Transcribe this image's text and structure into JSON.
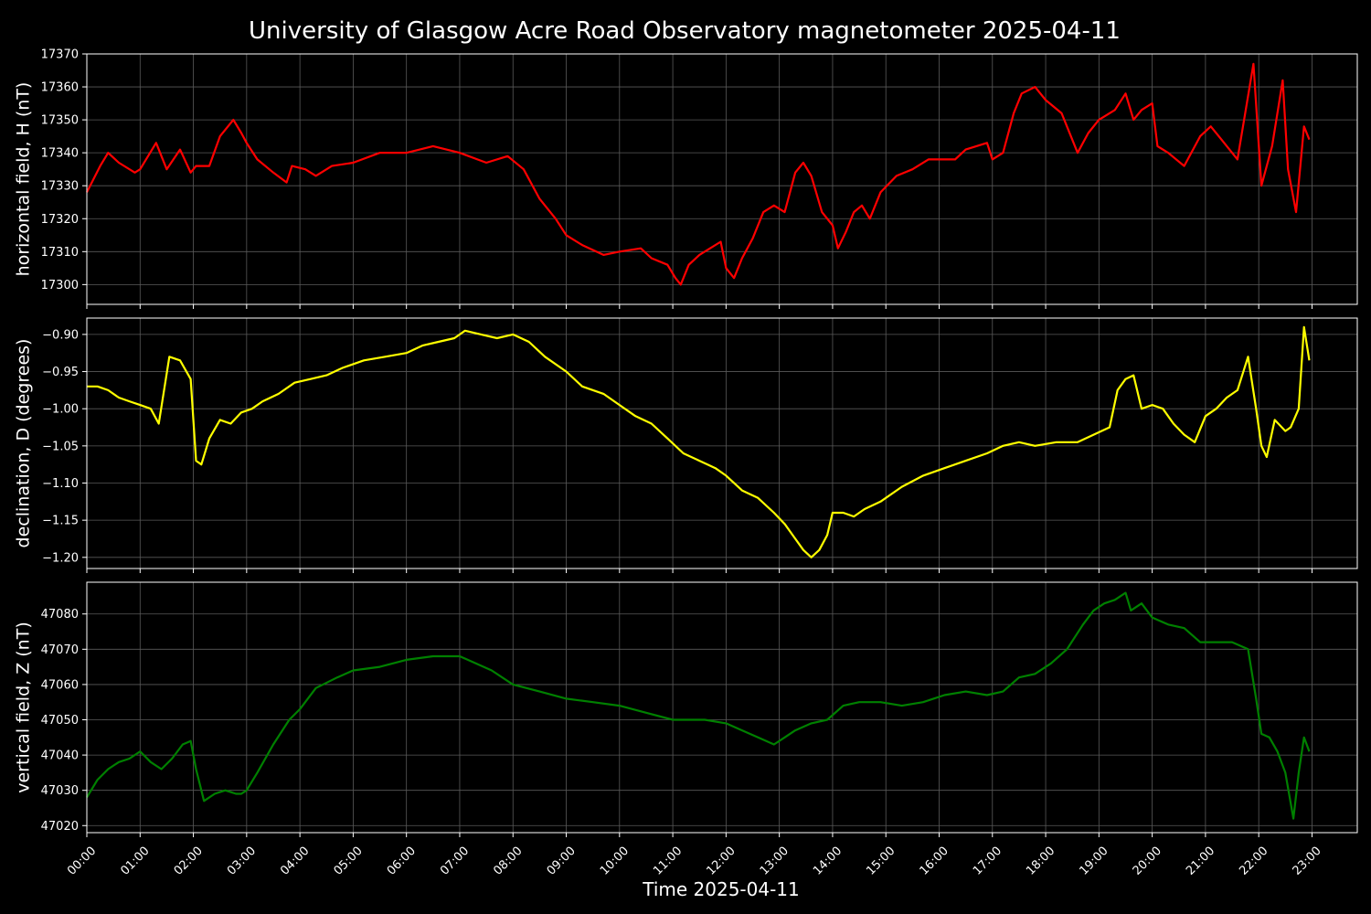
{
  "title": "University of Glasgow Acre Road Observatory magnetometer 2025-04-11",
  "xlabel": "Time 2025-04-11",
  "chart_data": [
    {
      "type": "line",
      "name": "horizontal",
      "ylabel": "horizontal field, H (nT)",
      "color": "#ff0000",
      "xlim": [
        0,
        23.85
      ],
      "ylim": [
        17294,
        17370
      ],
      "yticks": [
        17300,
        17310,
        17320,
        17330,
        17340,
        17350,
        17360,
        17370
      ],
      "x": [
        0,
        0.25,
        0.4,
        0.6,
        0.9,
        1,
        1.3,
        1.5,
        1.75,
        1.95,
        2.05,
        2.3,
        2.5,
        2.75,
        2.9,
        3,
        3.2,
        3.5,
        3.75,
        3.85,
        4.1,
        4.3,
        4.6,
        5,
        5.5,
        6,
        6.5,
        7,
        7.5,
        7.9,
        8.2,
        8.5,
        8.8,
        9,
        9.3,
        9.7,
        10,
        10.4,
        10.6,
        10.9,
        11.05,
        11.15,
        11.3,
        11.5,
        11.7,
        11.9,
        12,
        12.15,
        12.3,
        12.5,
        12.7,
        12.9,
        13.1,
        13.3,
        13.45,
        13.6,
        13.8,
        14,
        14.1,
        14.25,
        14.4,
        14.55,
        14.7,
        14.9,
        15.2,
        15.5,
        15.8,
        16,
        16.3,
        16.5,
        16.7,
        16.9,
        17,
        17.2,
        17.4,
        17.55,
        17.8,
        18,
        18.3,
        18.6,
        18.8,
        19,
        19.3,
        19.5,
        19.65,
        19.8,
        20,
        20.1,
        20.3,
        20.6,
        20.9,
        21.1,
        21.3,
        21.6,
        21.9,
        22.05,
        22.25,
        22.45,
        22.55,
        22.7,
        22.85,
        22.95
      ],
      "values": [
        17328,
        17336,
        17340,
        17337,
        17334,
        17335,
        17343,
        17335,
        17341,
        17334,
        17336,
        17336,
        17345,
        17350,
        17346,
        17343,
        17338,
        17334,
        17331,
        17336,
        17335,
        17333,
        17336,
        17337,
        17340,
        17340,
        17342,
        17340,
        17337,
        17339,
        17335,
        17326,
        17320,
        17315,
        17312,
        17309,
        17310,
        17311,
        17308,
        17306,
        17302,
        17300,
        17306,
        17309,
        17311,
        17313,
        17305,
        17302,
        17308,
        17314,
        17322,
        17324,
        17322,
        17334,
        17337,
        17333,
        17322,
        17318,
        17311,
        17316,
        17322,
        17324,
        17320,
        17328,
        17333,
        17335,
        17338,
        17338,
        17338,
        17341,
        17342,
        17343,
        17338,
        17340,
        17352,
        17358,
        17360,
        17356,
        17352,
        17340,
        17346,
        17350,
        17353,
        17358,
        17350,
        17353,
        17355,
        17342,
        17340,
        17336,
        17345,
        17348,
        17344,
        17338,
        17367,
        17330,
        17342,
        17362,
        17335,
        17322,
        17348,
        17344
      ]
    },
    {
      "type": "line",
      "name": "declination",
      "ylabel": "declination, D (degrees)",
      "color": "#ffff00",
      "xlim": [
        0,
        23.85
      ],
      "ylim": [
        -1.215,
        -0.878
      ],
      "yticks": [
        -1.2,
        -1.15,
        -1.1,
        -1.05,
        -1.0,
        -0.95,
        -0.9
      ],
      "x": [
        0,
        0.2,
        0.4,
        0.6,
        0.8,
        1,
        1.2,
        1.35,
        1.55,
        1.75,
        1.95,
        2.05,
        2.15,
        2.3,
        2.5,
        2.7,
        2.9,
        3.1,
        3.3,
        3.6,
        3.9,
        4.2,
        4.5,
        4.8,
        5.2,
        5.6,
        6,
        6.3,
        6.6,
        6.9,
        7.1,
        7.4,
        7.7,
        8,
        8.3,
        8.6,
        9,
        9.3,
        9.7,
        10,
        10.3,
        10.6,
        10.9,
        11.2,
        11.5,
        11.8,
        12,
        12.3,
        12.6,
        12.9,
        13.1,
        13.25,
        13.45,
        13.6,
        13.75,
        13.9,
        14,
        14.2,
        14.4,
        14.6,
        14.9,
        15.3,
        15.7,
        16.1,
        16.5,
        16.9,
        17.2,
        17.5,
        17.8,
        18.2,
        18.6,
        18.9,
        19.2,
        19.35,
        19.5,
        19.65,
        19.8,
        20,
        20.2,
        20.4,
        20.6,
        20.8,
        21,
        21.2,
        21.4,
        21.6,
        21.8,
        21.95,
        22.05,
        22.15,
        22.3,
        22.5,
        22.6,
        22.75,
        22.85,
        22.95
      ],
      "values": [
        -0.97,
        -0.97,
        -0.975,
        -0.985,
        -0.99,
        -0.995,
        -1.0,
        -1.02,
        -0.93,
        -0.935,
        -0.96,
        -1.07,
        -1.075,
        -1.04,
        -1.015,
        -1.02,
        -1.005,
        -1.0,
        -0.99,
        -0.98,
        -0.965,
        -0.96,
        -0.955,
        -0.945,
        -0.935,
        -0.93,
        -0.925,
        -0.915,
        -0.91,
        -0.905,
        -0.895,
        -0.9,
        -0.905,
        -0.9,
        -0.91,
        -0.93,
        -0.95,
        -0.97,
        -0.98,
        -0.995,
        -1.01,
        -1.02,
        -1.04,
        -1.06,
        -1.07,
        -1.08,
        -1.09,
        -1.11,
        -1.12,
        -1.14,
        -1.155,
        -1.17,
        -1.19,
        -1.2,
        -1.19,
        -1.17,
        -1.14,
        -1.14,
        -1.145,
        -1.135,
        -1.125,
        -1.105,
        -1.09,
        -1.08,
        -1.07,
        -1.06,
        -1.05,
        -1.045,
        -1.05,
        -1.045,
        -1.045,
        -1.035,
        -1.025,
        -0.975,
        -0.96,
        -0.955,
        -1.0,
        -0.995,
        -1.0,
        -1.02,
        -1.035,
        -1.045,
        -1.01,
        -1.0,
        -0.985,
        -0.975,
        -0.93,
        -1.0,
        -1.05,
        -1.065,
        -1.015,
        -1.03,
        -1.025,
        -1.0,
        -0.89,
        -0.935
      ]
    },
    {
      "type": "line",
      "name": "vertical",
      "ylabel": "vertical field, Z (nT)",
      "color": "#008000",
      "xlim": [
        0,
        23.85
      ],
      "ylim": [
        47018,
        47089
      ],
      "yticks": [
        47020,
        47030,
        47040,
        47050,
        47060,
        47070,
        47080
      ],
      "x": [
        0,
        0.2,
        0.4,
        0.6,
        0.8,
        1,
        1.2,
        1.4,
        1.6,
        1.8,
        1.95,
        2.05,
        2.2,
        2.4,
        2.6,
        2.8,
        2.9,
        3,
        3.2,
        3.5,
        3.8,
        4,
        4.3,
        4.7,
        5,
        5.5,
        6,
        6.5,
        7,
        7.3,
        7.6,
        8,
        8.5,
        9,
        9.5,
        10,
        10.5,
        11,
        11.3,
        11.6,
        12,
        12.3,
        12.6,
        12.9,
        13.1,
        13.3,
        13.6,
        13.9,
        14.2,
        14.5,
        14.9,
        15.3,
        15.7,
        16.1,
        16.5,
        16.9,
        17.2,
        17.5,
        17.8,
        18.1,
        18.4,
        18.7,
        18.9,
        19.1,
        19.3,
        19.5,
        19.6,
        19.8,
        20,
        20.3,
        20.6,
        20.9,
        21.2,
        21.5,
        21.8,
        21.95,
        22.05,
        22.2,
        22.35,
        22.5,
        22.65,
        22.75,
        22.85,
        22.95
      ],
      "values": [
        47028,
        47033,
        47036,
        47038,
        47039,
        47041,
        47038,
        47036,
        47039,
        47043,
        47044,
        47036,
        47027,
        47029,
        47030,
        47029,
        47029,
        47030,
        47035,
        47043,
        47050,
        47053,
        47059,
        47062,
        47064,
        47065,
        47067,
        47068,
        47068,
        47066,
        47064,
        47060,
        47058,
        47056,
        47055,
        47054,
        47052,
        47050,
        47050,
        47050,
        47049,
        47047,
        47045,
        47043,
        47045,
        47047,
        47049,
        47050,
        47054,
        47055,
        47055,
        47054,
        47055,
        47057,
        47058,
        47057,
        47058,
        47062,
        47063,
        47066,
        47070,
        47077,
        47081,
        47083,
        47084,
        47086,
        47081,
        47083,
        47079,
        47077,
        47076,
        47072,
        47072,
        47072,
        47070,
        47056,
        47046,
        47045,
        47041,
        47035,
        47022,
        47035,
        47045,
        47041
      ]
    }
  ],
  "xticks": [
    "00:00",
    "01:00",
    "02:00",
    "03:00",
    "04:00",
    "05:00",
    "06:00",
    "07:00",
    "08:00",
    "09:00",
    "10:00",
    "11:00",
    "12:00",
    "13:00",
    "14:00",
    "15:00",
    "16:00",
    "17:00",
    "18:00",
    "19:00",
    "20:00",
    "21:00",
    "22:00",
    "23:00"
  ]
}
